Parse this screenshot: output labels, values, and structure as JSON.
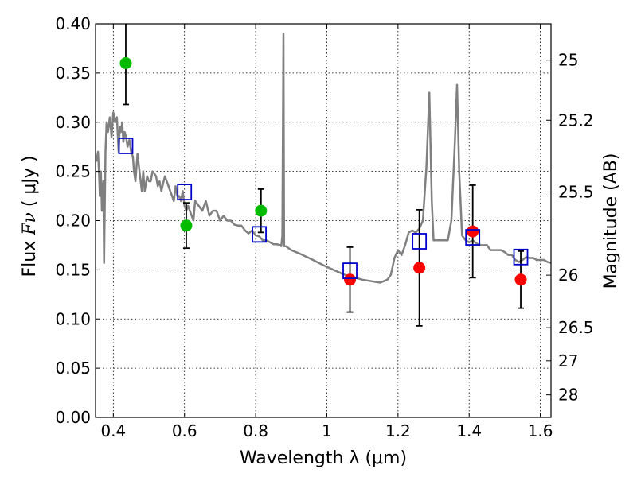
{
  "chart_data": {
    "type": "scatter",
    "title": "",
    "xlabel": "Wavelength  λ (μm)",
    "ylabel_prefix": "Flux  ",
    "ylabel_symbol": "Fν",
    "ylabel_suffix": "  ( μJy )",
    "y2label": "Magnitude (AB)",
    "xlim": [
      0.35,
      1.63
    ],
    "ylim": [
      0.0,
      0.4
    ],
    "grid": true,
    "xticks": [
      0.4,
      0.6,
      0.8,
      1.0,
      1.2,
      1.4,
      1.6
    ],
    "xtick_labels": [
      "0.4",
      "0.6",
      "0.8",
      "1",
      "1.2",
      "1.4",
      "1.6"
    ],
    "yticks": [
      0.0,
      0.05,
      0.1,
      0.15,
      0.2,
      0.25,
      0.3,
      0.35,
      0.4
    ],
    "ytick_labels": [
      "0.00",
      "0.05",
      "0.10",
      "0.15",
      "0.20",
      "0.25",
      "0.30",
      "0.35",
      "0.40"
    ],
    "y2ticks": [
      {
        "mag": 25,
        "label": "25"
      },
      {
        "mag": 25.2,
        "label": "25.2"
      },
      {
        "mag": 25.5,
        "label": "25.5"
      },
      {
        "mag": 26,
        "label": "26"
      },
      {
        "mag": 26.5,
        "label": "26.5"
      },
      {
        "mag": 27,
        "label": "27"
      },
      {
        "mag": 28,
        "label": "28"
      }
    ],
    "colors": {
      "spectrum": "#808080",
      "green": "#00bb00",
      "red": "#ff0000",
      "model": "#0000cc",
      "errorbar": "#000000",
      "grid": "#000000"
    },
    "series": [
      {
        "kind": "spectrum_line",
        "x": [
          0.352,
          0.357,
          0.36,
          0.362,
          0.365,
          0.368,
          0.372,
          0.374,
          0.378,
          0.381,
          0.385,
          0.39,
          0.395,
          0.4,
          0.405,
          0.41,
          0.415,
          0.418,
          0.421,
          0.425,
          0.428,
          0.432,
          0.436,
          0.44,
          0.445,
          0.45,
          0.455,
          0.458,
          0.462,
          0.468,
          0.475,
          0.48,
          0.484,
          0.488,
          0.495,
          0.5,
          0.505,
          0.51,
          0.515,
          0.52,
          0.525,
          0.53,
          0.535,
          0.54,
          0.545,
          0.55,
          0.555,
          0.56,
          0.565,
          0.57,
          0.575,
          0.58,
          0.585,
          0.59,
          0.595,
          0.6,
          0.605,
          0.61,
          0.615,
          0.62,
          0.625,
          0.63,
          0.64,
          0.65,
          0.66,
          0.67,
          0.68,
          0.69,
          0.7,
          0.71,
          0.72,
          0.73,
          0.74,
          0.75,
          0.76,
          0.77,
          0.78,
          0.79,
          0.8,
          0.81,
          0.82,
          0.83,
          0.84,
          0.85,
          0.86,
          0.87,
          0.872,
          0.875,
          0.878,
          0.88,
          0.885,
          0.9,
          0.92,
          0.95,
          1.0,
          1.05,
          1.1,
          1.15,
          1.17,
          1.18,
          1.19,
          1.2,
          1.21,
          1.22,
          1.23,
          1.24,
          1.25,
          1.26,
          1.27,
          1.28,
          1.288,
          1.295,
          1.3,
          1.31,
          1.32,
          1.33,
          1.34,
          1.35,
          1.36,
          1.366,
          1.372,
          1.38,
          1.39,
          1.4,
          1.41,
          1.42,
          1.43,
          1.44,
          1.45,
          1.46,
          1.47,
          1.48,
          1.49,
          1.5,
          1.51,
          1.52,
          1.53,
          1.54,
          1.55,
          1.56,
          1.57,
          1.58,
          1.59,
          1.6,
          1.61,
          1.62,
          1.63
        ],
        "y": [
          0.26,
          0.27,
          0.245,
          0.225,
          0.25,
          0.21,
          0.24,
          0.157,
          0.27,
          0.3,
          0.29,
          0.305,
          0.285,
          0.31,
          0.3,
          0.305,
          0.27,
          0.295,
          0.29,
          0.3,
          0.28,
          0.29,
          0.285,
          0.275,
          0.282,
          0.27,
          0.265,
          0.25,
          0.24,
          0.268,
          0.245,
          0.23,
          0.25,
          0.23,
          0.245,
          0.24,
          0.24,
          0.25,
          0.248,
          0.245,
          0.235,
          0.24,
          0.23,
          0.238,
          0.245,
          0.24,
          0.235,
          0.23,
          0.225,
          0.22,
          0.235,
          0.225,
          0.225,
          0.22,
          0.23,
          0.215,
          0.21,
          0.215,
          0.21,
          0.205,
          0.2,
          0.22,
          0.215,
          0.21,
          0.22,
          0.205,
          0.21,
          0.21,
          0.2,
          0.205,
          0.2,
          0.2,
          0.196,
          0.195,
          0.195,
          0.19,
          0.187,
          0.19,
          0.185,
          0.184,
          0.18,
          0.18,
          0.178,
          0.176,
          0.176,
          0.175,
          0.174,
          0.185,
          0.39,
          0.174,
          0.174,
          0.17,
          0.167,
          0.162,
          0.153,
          0.145,
          0.14,
          0.137,
          0.14,
          0.145,
          0.162,
          0.17,
          0.165,
          0.175,
          0.188,
          0.19,
          0.188,
          0.192,
          0.2,
          0.255,
          0.33,
          0.22,
          0.18,
          0.18,
          0.18,
          0.18,
          0.18,
          0.2,
          0.28,
          0.338,
          0.25,
          0.185,
          0.18,
          0.178,
          0.18,
          0.177,
          0.175,
          0.175,
          0.175,
          0.17,
          0.17,
          0.17,
          0.17,
          0.168,
          0.165,
          0.165,
          0.16,
          0.158,
          0.16,
          0.163,
          0.162,
          0.162,
          0.16,
          0.16,
          0.16,
          0.158,
          0.157
        ]
      },
      {
        "kind": "points",
        "marker": "circle",
        "color": "green",
        "x": [
          0.435,
          0.605,
          0.815
        ],
        "y": [
          0.36,
          0.195,
          0.21
        ],
        "err": [
          0.042,
          0.023,
          0.022
        ]
      },
      {
        "kind": "points",
        "marker": "circle",
        "color": "red",
        "x": [
          1.065,
          1.26,
          1.41,
          1.545
        ],
        "y": [
          0.14,
          0.152,
          0.189,
          0.14
        ],
        "err": [
          0.033,
          0.059,
          0.047,
          0.029
        ]
      },
      {
        "kind": "points",
        "marker": "square",
        "color": "model",
        "x": [
          0.435,
          0.6,
          0.81,
          1.065,
          1.26,
          1.41,
          1.545
        ],
        "y": [
          0.276,
          0.229,
          0.186,
          0.149,
          0.179,
          0.183,
          0.163
        ]
      }
    ]
  }
}
